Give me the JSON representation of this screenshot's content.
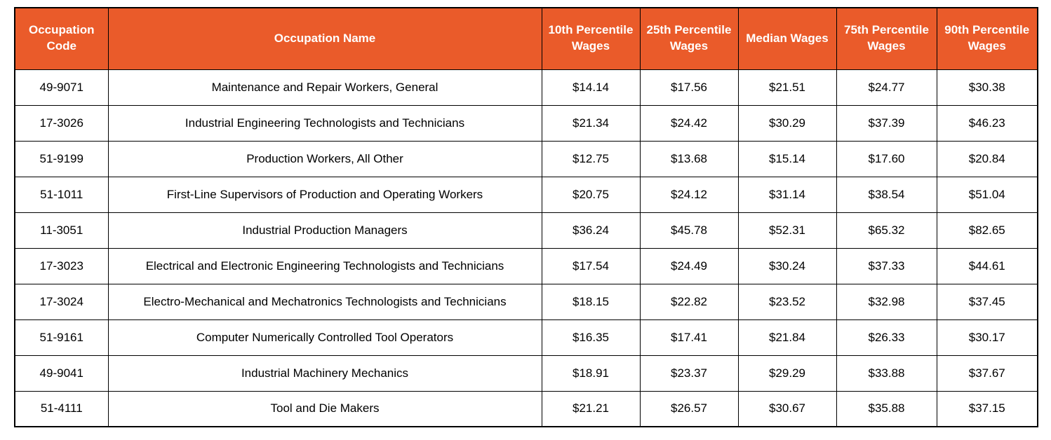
{
  "colors": {
    "header_background": "#EA5B2A",
    "header_text": "#FFFFFF",
    "border": "#000000",
    "body_text": "#000000",
    "body_background": "#FFFFFF"
  },
  "chart_data": {
    "type": "table",
    "title": "",
    "columns": [
      "Occupation Code",
      "Occupation Name",
      "10th Percentile Wages",
      "25th Percentile Wages",
      "Median Wages",
      "75th Percentile Wages",
      "90th Percentile Wages"
    ],
    "rows": [
      [
        "49-9071",
        "Maintenance and Repair Workers, General",
        "$14.14",
        "$17.56",
        "$21.51",
        "$24.77",
        "$30.38"
      ],
      [
        "17-3026",
        "Industrial Engineering Technologists and Technicians",
        "$21.34",
        "$24.42",
        "$30.29",
        "$37.39",
        "$46.23"
      ],
      [
        "51-9199",
        "Production Workers, All Other",
        "$12.75",
        "$13.68",
        "$15.14",
        "$17.60",
        "$20.84"
      ],
      [
        "51-1011",
        "First-Line Supervisors of Production and Operating Workers",
        "$20.75",
        "$24.12",
        "$31.14",
        "$38.54",
        "$51.04"
      ],
      [
        "11-3051",
        "Industrial Production Managers",
        "$36.24",
        "$45.78",
        "$52.31",
        "$65.32",
        "$82.65"
      ],
      [
        "17-3023",
        "Electrical and Electronic Engineering Technologists and Technicians",
        "$17.54",
        "$24.49",
        "$30.24",
        "$37.33",
        "$44.61"
      ],
      [
        "17-3024",
        "Electro-Mechanical and Mechatronics Technologists and Technicians",
        "$18.15",
        "$22.82",
        "$23.52",
        "$32.98",
        "$37.45"
      ],
      [
        "51-9161",
        "Computer Numerically Controlled Tool Operators",
        "$16.35",
        "$17.41",
        "$21.84",
        "$26.33",
        "$30.17"
      ],
      [
        "49-9041",
        "Industrial Machinery Mechanics",
        "$18.91",
        "$23.37",
        "$29.29",
        "$33.88",
        "$37.67"
      ],
      [
        "51-4111",
        "Tool and Die Makers",
        "$21.21",
        "$26.57",
        "$30.67",
        "$35.88",
        "$37.15"
      ]
    ]
  }
}
